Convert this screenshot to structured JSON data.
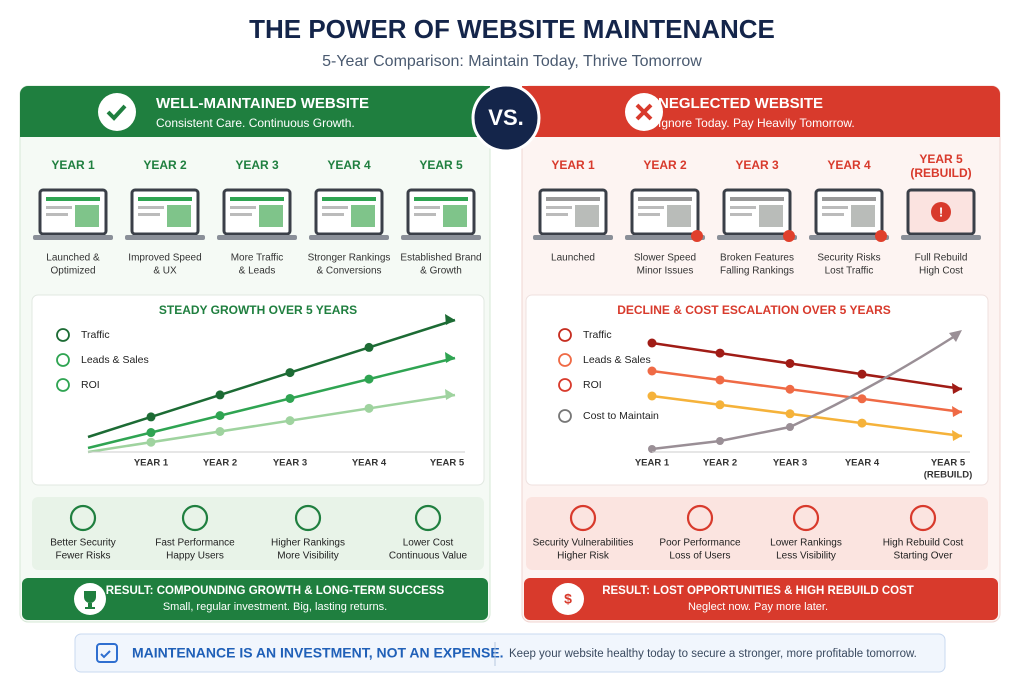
{
  "title": "THE POWER OF WEBSITE MAINTENANCE",
  "subtitle": "5-Year Comparison: Maintain Today, Thrive Tomorrow",
  "vs": "VS.",
  "left": {
    "heading": "WELL-MAINTAINED WEBSITE",
    "tagline": "Consistent Care. Continuous Growth.",
    "years": [
      [
        "YEAR 1"
      ],
      [
        "YEAR 2"
      ],
      [
        "YEAR 3"
      ],
      [
        "YEAR 4"
      ],
      [
        "YEAR 5"
      ]
    ],
    "captions": [
      [
        "Launched &",
        "Optimized"
      ],
      [
        "Improved Speed",
        "& UX"
      ],
      [
        "More Traffic",
        "& Leads"
      ],
      [
        "Stronger Rankings",
        "& Conversions"
      ],
      [
        "Established Brand",
        "& Growth"
      ]
    ],
    "chart": {
      "title": "STEADY GROWTH OVER 5 YEARS",
      "legend": [
        "Traffic",
        "Leads & Sales",
        "ROI"
      ],
      "x": [
        [
          "YEAR 1"
        ],
        [
          "YEAR 2"
        ],
        [
          "YEAR 3"
        ],
        [
          "YEAR 4"
        ],
        [
          "YEAR 5"
        ]
      ]
    },
    "benefits": [
      [
        "Better Security",
        "Fewer Risks"
      ],
      [
        "Fast Performance",
        "Happy Users"
      ],
      [
        "Higher Rankings",
        "More Visibility"
      ],
      [
        "Lower Cost",
        "Continuous Value"
      ]
    ],
    "result": {
      "title": "RESULT: COMPOUNDING GROWTH & LONG-TERM SUCCESS",
      "text": "Small, regular investment. Big, lasting returns."
    }
  },
  "right": {
    "heading": "NEGLECTED WEBSITE",
    "tagline": "Ignore Today. Pay Heavily Tomorrow.",
    "years": [
      [
        "YEAR 1"
      ],
      [
        "YEAR 2"
      ],
      [
        "YEAR 3"
      ],
      [
        "YEAR 4"
      ],
      [
        "YEAR 5",
        "(REBUILD)"
      ]
    ],
    "captions": [
      [
        "Launched"
      ],
      [
        "Slower Speed",
        "Minor Issues"
      ],
      [
        "Broken Features",
        "Falling Rankings"
      ],
      [
        "Security Risks",
        "Lost Traffic"
      ],
      [
        "Full Rebuild",
        "High Cost"
      ]
    ],
    "chart": {
      "title": "DECLINE & COST ESCALATION OVER 5 YEARS",
      "legend": [
        "Traffic",
        "Leads & Sales",
        "ROI",
        "Cost to Maintain"
      ],
      "x": [
        [
          "YEAR 1"
        ],
        [
          "YEAR 2"
        ],
        [
          "YEAR 3"
        ],
        [
          "YEAR 4"
        ],
        [
          "YEAR 5",
          "(REBUILD)"
        ]
      ]
    },
    "benefits": [
      [
        "Security Vulnerabilities",
        "Higher Risk"
      ],
      [
        "Poor Performance",
        "Loss of Users"
      ],
      [
        "Lower Rankings",
        "Less Visibility"
      ],
      [
        "High Rebuild Cost",
        "Starting Over"
      ]
    ],
    "result": {
      "title": "RESULT: LOST OPPORTUNITIES & HIGH REBUILD COST",
      "text": "Neglect now. Pay more later."
    }
  },
  "footer": {
    "headline": "MAINTENANCE IS AN INVESTMENT, NOT AN EXPENSE.",
    "text": "Keep your website healthy today to secure a stronger, more profitable tomorrow."
  }
}
